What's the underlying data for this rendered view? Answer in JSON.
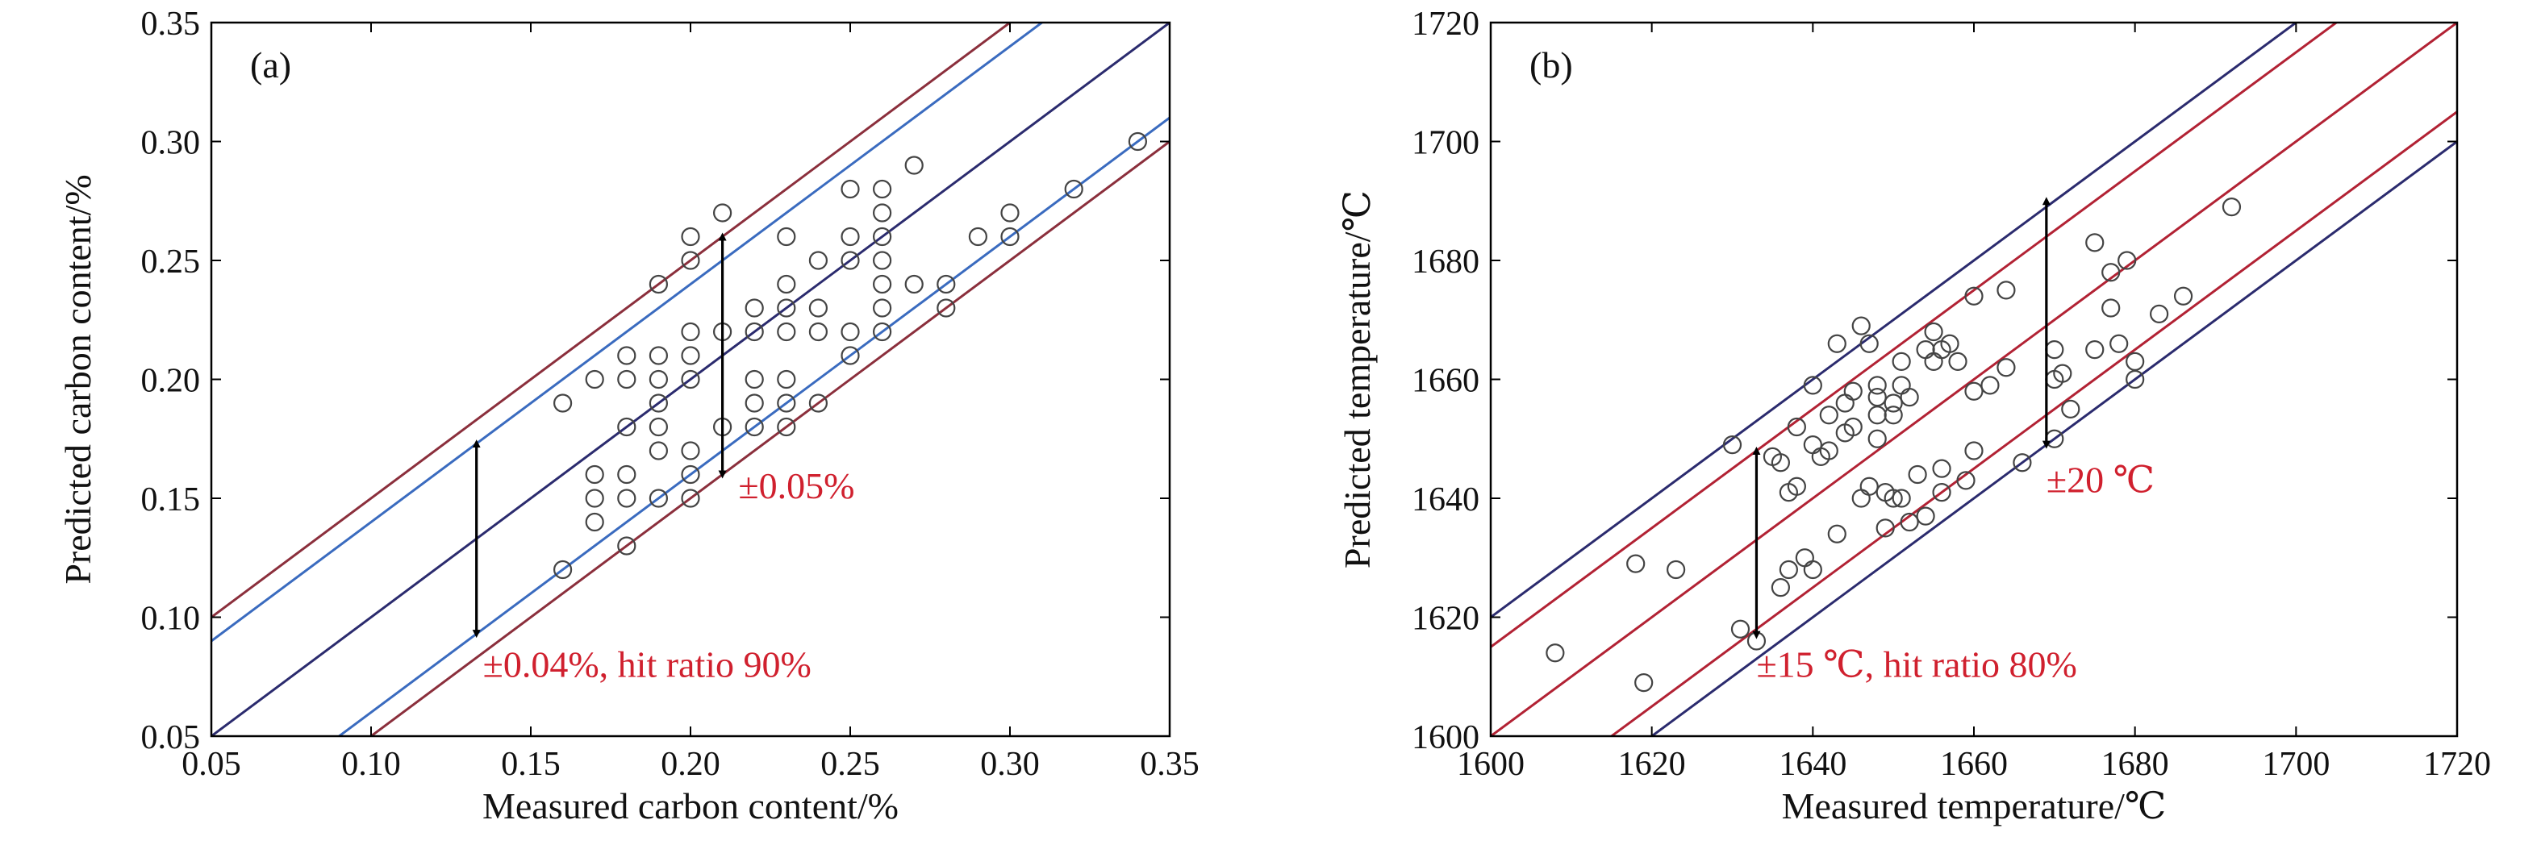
{
  "chart_data": [
    {
      "type": "scatter",
      "panel_label": "(a)",
      "xlabel": "Measured carbon content/%",
      "ylabel": "Predicted carbon content/%",
      "xlim": [
        0.05,
        0.35
      ],
      "ylim": [
        0.05,
        0.35
      ],
      "xticks": [
        "0.05",
        "0.10",
        "0.15",
        "0.20",
        "0.25",
        "0.30",
        "0.35"
      ],
      "yticks": [
        "0.05",
        "0.10",
        "0.15",
        "0.20",
        "0.25",
        "0.30",
        "0.35"
      ],
      "grid": false,
      "lines": [
        {
          "offset": 0.0,
          "color": "#2b2b6e"
        },
        {
          "offset": 0.05,
          "color": "#8b2f3c"
        },
        {
          "offset": -0.05,
          "color": "#8b2f3c"
        },
        {
          "offset": 0.04,
          "color": "#3a6bbf"
        },
        {
          "offset": -0.04,
          "color": "#3a6bbf"
        }
      ],
      "arrows": [
        {
          "x": 0.133,
          "y1": 0.093,
          "y2": 0.173
        },
        {
          "x": 0.21,
          "y1": 0.16,
          "y2": 0.26
        }
      ],
      "annotations": [
        {
          "text": "±0.05%",
          "x": 0.215,
          "y": 0.15,
          "color": "#d0202e"
        },
        {
          "text": "±0.04%, hit ratio 90%",
          "x": 0.135,
          "y": 0.075,
          "color": "#d0202e"
        }
      ],
      "points": [
        [
          0.16,
          0.19
        ],
        [
          0.16,
          0.12
        ],
        [
          0.17,
          0.2
        ],
        [
          0.17,
          0.16
        ],
        [
          0.17,
          0.15
        ],
        [
          0.17,
          0.14
        ],
        [
          0.18,
          0.21
        ],
        [
          0.18,
          0.2
        ],
        [
          0.18,
          0.18
        ],
        [
          0.18,
          0.16
        ],
        [
          0.18,
          0.15
        ],
        [
          0.18,
          0.13
        ],
        [
          0.19,
          0.24
        ],
        [
          0.19,
          0.21
        ],
        [
          0.19,
          0.2
        ],
        [
          0.19,
          0.19
        ],
        [
          0.19,
          0.18
        ],
        [
          0.19,
          0.17
        ],
        [
          0.19,
          0.15
        ],
        [
          0.2,
          0.26
        ],
        [
          0.2,
          0.25
        ],
        [
          0.2,
          0.22
        ],
        [
          0.2,
          0.21
        ],
        [
          0.2,
          0.2
        ],
        [
          0.2,
          0.17
        ],
        [
          0.2,
          0.16
        ],
        [
          0.2,
          0.15
        ],
        [
          0.21,
          0.27
        ],
        [
          0.21,
          0.22
        ],
        [
          0.21,
          0.18
        ],
        [
          0.22,
          0.23
        ],
        [
          0.22,
          0.22
        ],
        [
          0.22,
          0.2
        ],
        [
          0.22,
          0.19
        ],
        [
          0.22,
          0.18
        ],
        [
          0.23,
          0.26
        ],
        [
          0.23,
          0.24
        ],
        [
          0.23,
          0.23
        ],
        [
          0.23,
          0.22
        ],
        [
          0.23,
          0.2
        ],
        [
          0.23,
          0.19
        ],
        [
          0.23,
          0.18
        ],
        [
          0.24,
          0.25
        ],
        [
          0.24,
          0.23
        ],
        [
          0.24,
          0.22
        ],
        [
          0.24,
          0.19
        ],
        [
          0.25,
          0.28
        ],
        [
          0.25,
          0.26
        ],
        [
          0.25,
          0.25
        ],
        [
          0.25,
          0.22
        ],
        [
          0.25,
          0.21
        ],
        [
          0.26,
          0.28
        ],
        [
          0.26,
          0.27
        ],
        [
          0.26,
          0.26
        ],
        [
          0.26,
          0.25
        ],
        [
          0.26,
          0.24
        ],
        [
          0.26,
          0.23
        ],
        [
          0.26,
          0.22
        ],
        [
          0.27,
          0.29
        ],
        [
          0.27,
          0.24
        ],
        [
          0.28,
          0.24
        ],
        [
          0.28,
          0.23
        ],
        [
          0.29,
          0.26
        ],
        [
          0.3,
          0.27
        ],
        [
          0.3,
          0.26
        ],
        [
          0.32,
          0.28
        ],
        [
          0.34,
          0.3
        ]
      ]
    },
    {
      "type": "scatter",
      "panel_label": "(b)",
      "xlabel": "Measured temperature/℃",
      "ylabel": "Predicted temperature/℃",
      "xlim": [
        1600,
        1720
      ],
      "ylim": [
        1600,
        1720
      ],
      "xticks": [
        "1600",
        "1620",
        "1640",
        "1660",
        "1680",
        "1700",
        "1720"
      ],
      "yticks": [
        "1600",
        "1620",
        "1640",
        "1660",
        "1680",
        "1700",
        "1720"
      ],
      "grid": false,
      "lines": [
        {
          "offset": 20,
          "color": "#2b2b6e"
        },
        {
          "offset": -20,
          "color": "#2b2b6e"
        },
        {
          "offset": 15,
          "color": "#b22234"
        },
        {
          "offset": -15,
          "color": "#b22234"
        },
        {
          "offset": 0,
          "color": "#b22234"
        }
      ],
      "arrows": [
        {
          "x": 1633,
          "y1": 1617,
          "y2": 1648
        },
        {
          "x": 1669,
          "y1": 1649,
          "y2": 1690
        }
      ],
      "annotations": [
        {
          "text": "±20 ℃",
          "x": 1669,
          "y": 1641,
          "color": "#d0202e"
        },
        {
          "text": "±15 ℃, hit ratio 80%",
          "x": 1633,
          "y": 1610,
          "color": "#d0202e"
        }
      ],
      "points": [
        [
          1608,
          1614
        ],
        [
          1618,
          1629
        ],
        [
          1619,
          1609
        ],
        [
          1623,
          1628
        ],
        [
          1630,
          1649
        ],
        [
          1631,
          1618
        ],
        [
          1633,
          1616
        ],
        [
          1635,
          1647
        ],
        [
          1636,
          1646
        ],
        [
          1636,
          1625
        ],
        [
          1637,
          1628
        ],
        [
          1637,
          1641
        ],
        [
          1638,
          1652
        ],
        [
          1638,
          1642
        ],
        [
          1639,
          1630
        ],
        [
          1640,
          1659
        ],
        [
          1640,
          1649
        ],
        [
          1640,
          1628
        ],
        [
          1641,
          1647
        ],
        [
          1642,
          1654
        ],
        [
          1642,
          1648
        ],
        [
          1643,
          1666
        ],
        [
          1643,
          1634
        ],
        [
          1644,
          1656
        ],
        [
          1644,
          1651
        ],
        [
          1645,
          1658
        ],
        [
          1645,
          1652
        ],
        [
          1646,
          1669
        ],
        [
          1646,
          1640
        ],
        [
          1647,
          1666
        ],
        [
          1647,
          1642
        ],
        [
          1648,
          1659
        ],
        [
          1648,
          1654
        ],
        [
          1648,
          1657
        ],
        [
          1648,
          1650
        ],
        [
          1649,
          1635
        ],
        [
          1649,
          1641
        ],
        [
          1650,
          1654
        ],
        [
          1650,
          1656
        ],
        [
          1650,
          1640
        ],
        [
          1651,
          1663
        ],
        [
          1651,
          1659
        ],
        [
          1651,
          1640
        ],
        [
          1652,
          1657
        ],
        [
          1652,
          1636
        ],
        [
          1653,
          1644
        ],
        [
          1654,
          1665
        ],
        [
          1654,
          1637
        ],
        [
          1655,
          1668
        ],
        [
          1655,
          1663
        ],
        [
          1656,
          1665
        ],
        [
          1656,
          1645
        ],
        [
          1656,
          1641
        ],
        [
          1657,
          1666
        ],
        [
          1658,
          1663
        ],
        [
          1659,
          1643
        ],
        [
          1660,
          1674
        ],
        [
          1660,
          1658
        ],
        [
          1660,
          1648
        ],
        [
          1662,
          1659
        ],
        [
          1664,
          1675
        ],
        [
          1664,
          1662
        ],
        [
          1666,
          1646
        ],
        [
          1670,
          1665
        ],
        [
          1670,
          1660
        ],
        [
          1670,
          1650
        ],
        [
          1671,
          1661
        ],
        [
          1672,
          1655
        ],
        [
          1675,
          1683
        ],
        [
          1675,
          1665
        ],
        [
          1677,
          1678
        ],
        [
          1677,
          1672
        ],
        [
          1678,
          1666
        ],
        [
          1679,
          1680
        ],
        [
          1680,
          1663
        ],
        [
          1680,
          1660
        ],
        [
          1683,
          1671
        ],
        [
          1686,
          1674
        ],
        [
          1692,
          1689
        ]
      ]
    }
  ]
}
